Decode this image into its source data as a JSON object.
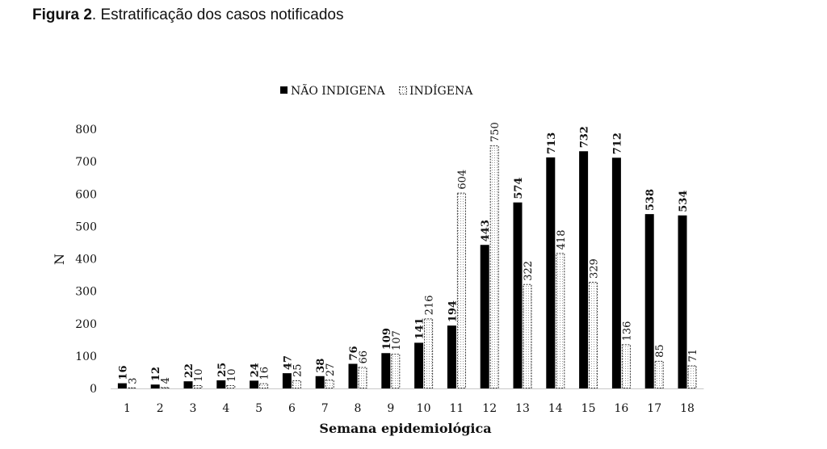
{
  "figure": {
    "label": "Figura 2",
    "caption": ". Estratificação dos casos notificados"
  },
  "chart_data": {
    "type": "bar",
    "categories": [
      "1",
      "2",
      "3",
      "4",
      "5",
      "6",
      "7",
      "8",
      "9",
      "10",
      "11",
      "12",
      "13",
      "14",
      "15",
      "16",
      "17",
      "18"
    ],
    "series": [
      {
        "name": "NÃO INDIGENA",
        "values": [
          16,
          12,
          22,
          25,
          24,
          47,
          38,
          76,
          109,
          141,
          194,
          443,
          574,
          713,
          732,
          712,
          538,
          534
        ],
        "color": "#000000"
      },
      {
        "name": "INDÍGENA",
        "values": [
          3,
          4,
          10,
          10,
          16,
          25,
          27,
          66,
          107,
          216,
          604,
          750,
          322,
          418,
          329,
          136,
          85,
          71
        ],
        "color": "#ffffff"
      }
    ],
    "xlabel": "Semana epidemiológica",
    "ylabel": "N",
    "ylim": [
      0,
      800
    ],
    "yticks": [
      0,
      100,
      200,
      300,
      400,
      500,
      600,
      700,
      800
    ],
    "grid": false,
    "legend": "top"
  }
}
